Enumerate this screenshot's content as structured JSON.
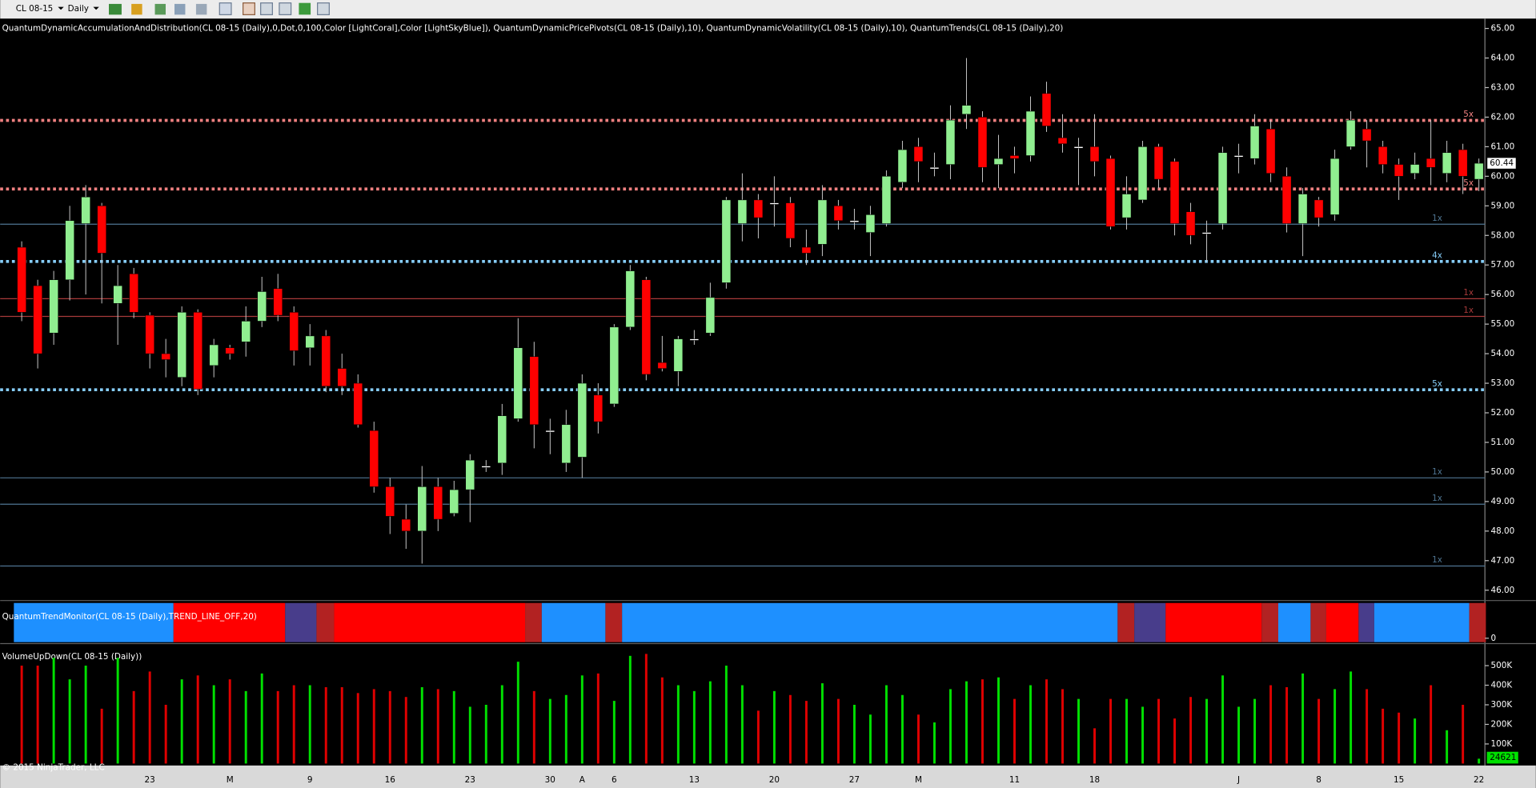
{
  "toolbar": {
    "symbol": "CL 08-15",
    "interval": "Daily"
  },
  "chart_data": [
    {
      "type": "candlestick",
      "title": "QuantumDynamicAccumulationAndDistribution(CL 08-15 (Daily),0,Dot,0,100,Color [LightCoral],Color [LightSkyBlue]), QuantumDynamicPricePivots(CL 08-15 (Daily),10), QuantumDynamicVolatility(CL 08-15 (Daily),10), QuantumTrends(CL 08-15 (Daily),20)",
      "categories": [
        null,
        null,
        null,
        null,
        null,
        null,
        null,
        null,
        "23",
        null,
        null,
        null,
        null,
        "M",
        null,
        null,
        null,
        null,
        "9",
        null,
        null,
        null,
        null,
        "16",
        null,
        null,
        null,
        null,
        "23",
        null,
        null,
        null,
        null,
        "30",
        null,
        "A",
        null,
        "6",
        null,
        null,
        null,
        null,
        "13",
        null,
        null,
        null,
        null,
        "20",
        null,
        null,
        null,
        null,
        "27",
        null,
        null,
        null,
        "M",
        null,
        null,
        null,
        null,
        null,
        "11",
        null,
        null,
        null,
        null,
        "18",
        null,
        null,
        null,
        null,
        null,
        null,
        null,
        null,
        "J",
        null,
        null,
        null,
        null,
        "8",
        null,
        null,
        null,
        null,
        "15",
        null,
        null,
        null,
        null,
        "22"
      ],
      "open": [
        57.6,
        56.3,
        54.7,
        56.5,
        58.4,
        59.0,
        55.7,
        56.7,
        55.3,
        54.0,
        53.2,
        55.4,
        53.6,
        54.2,
        54.4,
        55.1,
        56.2,
        55.4,
        54.2,
        54.6,
        53.5,
        53.0,
        51.4,
        49.5,
        48.4,
        48.0,
        49.5,
        48.6,
        49.4,
        50.2,
        50.3,
        51.8,
        53.9,
        51.4,
        50.3,
        50.5,
        52.6,
        52.3,
        54.9,
        56.5,
        53.7,
        53.4,
        54.5,
        54.7,
        56.4,
        58.4,
        59.2,
        59.1,
        59.1,
        57.6,
        57.7,
        59.0,
        58.5,
        58.1,
        58.4,
        59.8,
        61.0,
        60.3,
        60.4,
        62.1,
        62.0,
        60.4,
        60.7,
        60.7,
        62.8,
        61.3,
        61.0,
        61.0,
        60.6,
        58.6,
        59.2,
        61.0,
        60.5,
        58.8,
        58.1,
        58.4,
        60.7,
        60.6,
        61.6,
        60.0,
        58.4,
        59.2,
        58.7,
        61.0,
        61.6,
        61.0,
        60.4,
        60.1,
        60.6,
        60.1,
        60.9,
        59.9
      ],
      "high": [
        57.8,
        56.5,
        56.8,
        59.0,
        59.7,
        59.1,
        57.0,
        56.9,
        55.4,
        54.5,
        55.6,
        55.5,
        54.5,
        54.3,
        55.6,
        56.6,
        56.7,
        55.6,
        55.0,
        54.8,
        54.0,
        53.3,
        51.7,
        49.8,
        48.9,
        50.2,
        49.8,
        49.7,
        50.6,
        50.4,
        52.3,
        55.2,
        54.4,
        51.8,
        52.1,
        53.3,
        53.0,
        55.0,
        57.0,
        56.6,
        54.6,
        54.6,
        54.8,
        56.4,
        59.3,
        60.1,
        59.4,
        60.0,
        59.3,
        58.2,
        59.7,
        59.2,
        58.9,
        59.0,
        60.2,
        61.2,
        61.3,
        60.8,
        62.4,
        64.0,
        62.2,
        61.4,
        61.0,
        62.7,
        63.2,
        62.1,
        61.3,
        62.1,
        60.7,
        60.0,
        61.2,
        61.1,
        60.6,
        59.1,
        58.5,
        61.0,
        61.1,
        62.1,
        61.9,
        60.3,
        59.6,
        59.3,
        60.9,
        62.2,
        61.9,
        61.2,
        60.6,
        60.8,
        61.9,
        61.2,
        61.1,
        60.6
      ],
      "low": [
        55.1,
        53.5,
        54.3,
        55.8,
        56.0,
        55.7,
        54.3,
        55.2,
        53.5,
        53.2,
        52.9,
        52.6,
        53.2,
        53.8,
        53.9,
        54.9,
        55.1,
        53.6,
        53.6,
        52.7,
        52.6,
        51.5,
        49.3,
        47.9,
        47.4,
        46.9,
        48.0,
        48.5,
        48.3,
        50.0,
        49.9,
        51.7,
        50.8,
        50.6,
        50.0,
        49.8,
        51.3,
        52.2,
        54.8,
        53.1,
        53.4,
        52.9,
        54.3,
        54.6,
        56.2,
        57.8,
        57.9,
        58.3,
        57.6,
        57.0,
        57.3,
        58.2,
        58.2,
        57.3,
        58.3,
        59.6,
        59.8,
        60.0,
        59.9,
        61.6,
        59.8,
        59.6,
        60.1,
        60.5,
        61.5,
        60.8,
        59.7,
        60.0,
        58.2,
        58.2,
        59.1,
        59.6,
        58.0,
        57.7,
        57.1,
        58.2,
        60.1,
        60.4,
        59.8,
        58.1,
        57.3,
        58.3,
        58.5,
        60.9,
        60.3,
        60.1,
        59.2,
        59.9,
        59.7,
        59.8,
        59.4,
        59.5
      ],
      "close": [
        55.4,
        54.0,
        56.5,
        58.5,
        59.3,
        57.4,
        56.3,
        55.4,
        54.0,
        53.8,
        55.4,
        52.8,
        54.3,
        54.0,
        55.1,
        56.1,
        55.3,
        54.1,
        54.6,
        52.9,
        52.9,
        51.6,
        49.5,
        48.5,
        48.0,
        49.5,
        48.4,
        49.4,
        50.4,
        50.2,
        51.9,
        54.2,
        51.6,
        51.4,
        51.6,
        53.0,
        51.7,
        54.9,
        56.8,
        53.3,
        53.5,
        54.5,
        54.5,
        55.9,
        59.2,
        59.2,
        58.6,
        59.1,
        57.9,
        57.4,
        59.2,
        58.5,
        58.5,
        58.7,
        60.0,
        60.9,
        60.5,
        60.3,
        61.9,
        62.4,
        60.3,
        60.6,
        60.6,
        62.2,
        61.7,
        61.1,
        61.0,
        60.5,
        58.3,
        59.4,
        61.0,
        59.9,
        58.4,
        58.0,
        58.1,
        60.8,
        60.7,
        61.7,
        60.1,
        58.4,
        59.4,
        58.6,
        60.6,
        61.9,
        61.2,
        60.4,
        60.0,
        60.4,
        60.3,
        60.8,
        60.0,
        60.44
      ],
      "up_color": "#90ee90",
      "down_color": "#ff0000",
      "doji_color": "#ffffff",
      "ylim": [
        45.7,
        65.3
      ],
      "yticks": [
        {
          "value": 46,
          "label": "46.00"
        },
        {
          "value": 47,
          "label": "47.00"
        },
        {
          "value": 48,
          "label": "48.00"
        },
        {
          "value": 49,
          "label": "49.00"
        },
        {
          "value": 50,
          "label": "50.00"
        },
        {
          "value": 51,
          "label": "51.00"
        },
        {
          "value": 52,
          "label": "52.00"
        },
        {
          "value": 53,
          "label": "53.00"
        },
        {
          "value": 54,
          "label": "54.00"
        },
        {
          "value": 55,
          "label": "55.00"
        },
        {
          "value": 56,
          "label": "56.00"
        },
        {
          "value": 57,
          "label": "57.00"
        },
        {
          "value": 58,
          "label": "58.00"
        },
        {
          "value": 59,
          "label": "59.00"
        },
        {
          "value": 60,
          "label": "60.00"
        },
        {
          "value": 61,
          "label": "61.00"
        },
        {
          "value": 62,
          "label": "62.00"
        },
        {
          "value": 63,
          "label": "63.00"
        },
        {
          "value": 64,
          "label": "64.00"
        },
        {
          "value": 65,
          "label": "65.00"
        }
      ],
      "levels": [
        {
          "value": 61.89,
          "label": "5x",
          "color": "#f08080",
          "style": "dotted"
        },
        {
          "value": 59.57,
          "label": "5x",
          "color": "#f08080",
          "style": "dotted"
        },
        {
          "value": 58.38,
          "label": "1x",
          "color": "#4f7592",
          "style": "solid"
        },
        {
          "value": 57.12,
          "label": "4x",
          "color": "#87cefa",
          "style": "dotted"
        },
        {
          "value": 55.86,
          "label": "1x",
          "color": "#a83a3a",
          "style": "solid"
        },
        {
          "value": 55.26,
          "label": "1x",
          "color": "#a83a3a",
          "style": "solid"
        },
        {
          "value": 52.78,
          "label": "5x",
          "color": "#87cefa",
          "style": "dotted"
        },
        {
          "value": 49.8,
          "label": "1x",
          "color": "#4f7592",
          "style": "solid"
        },
        {
          "value": 48.91,
          "label": "1x",
          "color": "#4f7592",
          "style": "solid"
        },
        {
          "value": 46.82,
          "label": "1x",
          "color": "#4f7592",
          "style": "solid"
        }
      ]
    },
    {
      "type": "bar",
      "title": "VolumeUpDown(CL 08-15 (Daily))",
      "values": [
        500000,
        500000,
        540000,
        430000,
        500000,
        280000,
        540000,
        370000,
        470000,
        300000,
        430000,
        450000,
        400000,
        430000,
        370000,
        460000,
        370000,
        400000,
        400000,
        390000,
        390000,
        360000,
        380000,
        370000,
        340000,
        390000,
        380000,
        370000,
        290000,
        300000,
        400000,
        520000,
        370000,
        330000,
        350000,
        450000,
        460000,
        320000,
        550000,
        560000,
        440000,
        400000,
        370000,
        420000,
        500000,
        400000,
        270000,
        370000,
        350000,
        320000,
        410000,
        330000,
        300000,
        250000,
        400000,
        350000,
        250000,
        210000,
        380000,
        420000,
        430000,
        440000,
        330000,
        400000,
        430000,
        380000,
        330000,
        180000,
        330000,
        330000,
        290000,
        330000,
        230000,
        340000,
        330000,
        450000,
        290000,
        330000,
        400000,
        390000,
        460000,
        330000,
        380000,
        470000,
        380000,
        280000,
        260000,
        230000,
        400000,
        170000,
        300000,
        24621
      ],
      "up_color": "#00e000",
      "down_color": "#e00000",
      "ylim": [
        0,
        600000
      ],
      "yticks": [
        {
          "value": 100000,
          "label": "100K"
        },
        {
          "value": 200000,
          "label": "200K"
        },
        {
          "value": 300000,
          "label": "300K"
        },
        {
          "value": 400000,
          "label": "400K"
        },
        {
          "value": 500000,
          "label": "500K"
        }
      ]
    }
  ],
  "trend_monitor": {
    "title": "QuantumTrendMonitor(CL 08-15 (Daily),TREND_LINE_OFF,20)",
    "yticks": [
      0
    ]
  },
  "copyright": "© 2015 NinjaTrader, LLC"
}
